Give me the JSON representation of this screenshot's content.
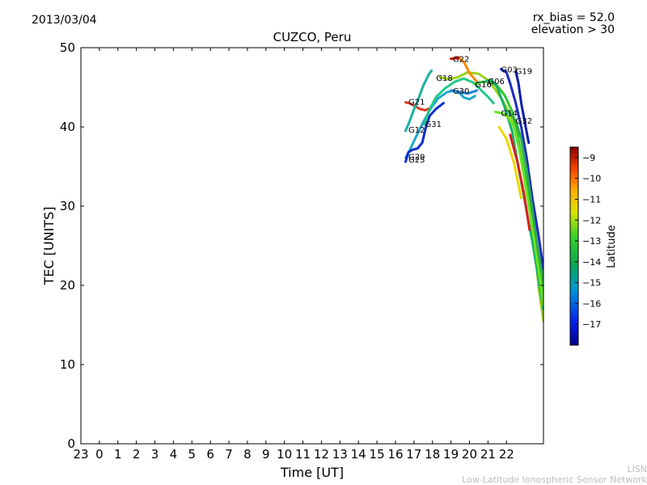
{
  "header": {
    "date": "2013/03/04",
    "rx_bias": "rx_bias = 52.0",
    "elevation": "elevation > 30"
  },
  "chart_data": {
    "type": "line",
    "title": "CUZCO, Peru",
    "xlabel": "Time [UT]",
    "ylabel": "TEC [UNITS]",
    "xlim": [
      -1,
      24
    ],
    "ylim": [
      0,
      50
    ],
    "xticks": [
      -1,
      0,
      1,
      2,
      3,
      4,
      5,
      6,
      7,
      8,
      9,
      10,
      11,
      12,
      13,
      14,
      15,
      16,
      17,
      18,
      19,
      20,
      21,
      22
    ],
    "xtick_labels": [
      "23",
      "0",
      "1",
      "2",
      "3",
      "4",
      "5",
      "6",
      "7",
      "8",
      "9",
      "10",
      "11",
      "12",
      "13",
      "14",
      "15",
      "16",
      "17",
      "18",
      "19",
      "20",
      "21",
      "22"
    ],
    "yticks": [
      0,
      10,
      20,
      30,
      40,
      50
    ],
    "ytick_labels": [
      "0",
      "10",
      "20",
      "30",
      "40",
      "50"
    ],
    "colorbar": {
      "label": "Latitude",
      "range": [
        -18,
        -8.5
      ],
      "ticks": [
        -9,
        -10,
        -11,
        -12,
        -13,
        -14,
        -15,
        -16,
        -17
      ],
      "tick_labels": [
        "−9",
        "−10",
        "−11",
        "−12",
        "−13",
        "−14",
        "−15",
        "−16",
        "−17"
      ]
    },
    "series": [
      {
        "name": "G21",
        "color": "#d93a1e",
        "label_at": [
          16.7,
          43.2
        ],
        "points": [
          [
            16.55,
            43.1
          ],
          [
            16.75,
            43.0
          ],
          [
            17.0,
            42.7
          ],
          [
            17.3,
            42.3
          ],
          [
            17.6,
            42.1
          ],
          [
            17.9,
            42.4
          ]
        ]
      },
      {
        "name": "G12",
        "color": "#19b3a5",
        "label_at": [
          16.7,
          39.7
        ],
        "points": [
          [
            16.55,
            39.5
          ],
          [
            16.75,
            40.6
          ],
          [
            17.0,
            42.2
          ],
          [
            17.25,
            43.6
          ],
          [
            17.5,
            45.2
          ],
          [
            17.8,
            46.6
          ],
          [
            17.95,
            47.1
          ]
        ]
      },
      {
        "name": "G29",
        "color": "#1fa8cc",
        "label_at": [
          16.7,
          36.3
        ],
        "points": [
          [
            16.55,
            36.1
          ],
          [
            16.8,
            37.2
          ],
          [
            17.1,
            38.7
          ],
          [
            17.5,
            40.6
          ],
          [
            17.9,
            42.3
          ],
          [
            18.3,
            43.6
          ],
          [
            18.8,
            44.4
          ],
          [
            19.2,
            44.6
          ],
          [
            19.5,
            44.2
          ],
          [
            19.7,
            43.7
          ],
          [
            20.0,
            43.5
          ],
          [
            20.3,
            43.9
          ]
        ]
      },
      {
        "name": "G25",
        "color": "#0c2fd0",
        "label_at": [
          16.7,
          35.9
        ],
        "points": [
          [
            16.55,
            35.6
          ],
          [
            16.7,
            36.8
          ],
          [
            16.9,
            37.1
          ],
          [
            17.2,
            37.3
          ],
          [
            17.45,
            38.0
          ],
          [
            17.65,
            40.0
          ],
          [
            17.85,
            41.4
          ],
          [
            18.2,
            42.3
          ],
          [
            18.6,
            43.0
          ]
        ]
      },
      {
        "name": "G31",
        "color": "#22c98a",
        "label_at": [
          17.6,
          40.4
        ],
        "points": [
          [
            17.55,
            40.3
          ],
          [
            17.8,
            42.0
          ],
          [
            18.2,
            43.8
          ],
          [
            18.7,
            44.9
          ],
          [
            19.2,
            45.7
          ],
          [
            19.7,
            46.1
          ],
          [
            20.2,
            45.6
          ],
          [
            20.6,
            44.7
          ],
          [
            21.0,
            43.8
          ],
          [
            21.3,
            43.0
          ]
        ]
      },
      {
        "name": "G18",
        "color": "#9ad21a",
        "label_at": [
          18.2,
          46.2
        ],
        "points": [
          [
            18.4,
            46.3
          ],
          [
            18.9,
            46.0
          ],
          [
            19.4,
            46.3
          ],
          [
            19.9,
            46.9
          ],
          [
            20.5,
            46.7
          ],
          [
            21.0,
            45.9
          ],
          [
            21.4,
            44.7
          ],
          [
            21.8,
            43.3
          ],
          [
            22.2,
            41.6
          ],
          [
            22.6,
            38.4
          ],
          [
            23.0,
            34.0
          ],
          [
            23.4,
            27.5
          ],
          [
            23.75,
            19.5
          ],
          [
            24.0,
            15.5
          ]
        ]
      },
      {
        "name": "G22",
        "color": "#ff8c00",
        "label_at": [
          19.1,
          48.6
        ],
        "points": [
          [
            19.1,
            48.6
          ],
          [
            19.4,
            48.8
          ],
          [
            19.7,
            48.2
          ],
          [
            20.0,
            46.8
          ],
          [
            20.4,
            45.7
          ]
        ]
      },
      {
        "name": "G22-red",
        "color": "#c91010",
        "label_at": null,
        "points": [
          [
            19.0,
            48.6
          ],
          [
            19.4,
            48.7
          ]
        ]
      },
      {
        "name": "G30",
        "color": "#1f86d8",
        "label_at": [
          19.1,
          44.6
        ],
        "points": [
          [
            19.0,
            44.6
          ],
          [
            19.5,
            44.4
          ],
          [
            19.9,
            44.2
          ],
          [
            20.4,
            44.6
          ]
        ]
      },
      {
        "name": "G16",
        "color": "#32c832",
        "label_at": [
          20.3,
          45.4
        ],
        "points": [
          [
            20.3,
            45.4
          ],
          [
            20.7,
            45.7
          ],
          [
            21.1,
            45.7
          ],
          [
            21.5,
            45.2
          ],
          [
            21.9,
            44.0
          ],
          [
            22.3,
            42.0
          ],
          [
            22.6,
            39.0
          ],
          [
            23.0,
            34.0
          ],
          [
            23.4,
            28.5
          ],
          [
            23.75,
            22.5
          ],
          [
            24.0,
            19.0
          ]
        ]
      },
      {
        "name": "G06",
        "color": "#16b06a",
        "label_at": [
          21.0,
          45.8
        ],
        "points": [
          [
            20.9,
            45.8
          ],
          [
            21.2,
            45.9
          ],
          [
            21.5,
            45.0
          ],
          [
            21.9,
            42.5
          ],
          [
            22.3,
            39.5
          ],
          [
            22.6,
            35.5
          ],
          [
            23.0,
            30.5
          ],
          [
            23.4,
            25.5
          ],
          [
            23.75,
            20.5
          ],
          [
            24.0,
            17.0
          ]
        ]
      },
      {
        "name": "G03",
        "color": "#1d2cc3",
        "label_at": [
          21.7,
          47.3
        ],
        "points": [
          [
            21.7,
            47.3
          ],
          [
            22.0,
            46.9
          ],
          [
            22.2,
            45.5
          ],
          [
            22.5,
            43.0
          ],
          [
            22.8,
            40.0
          ],
          [
            23.1,
            36.0
          ],
          [
            23.4,
            31.0
          ],
          [
            23.75,
            26.0
          ],
          [
            24.0,
            22.0
          ]
        ]
      },
      {
        "name": "G19",
        "color": "#0a1ea8",
        "label_at": [
          22.5,
          47.1
        ],
        "points": [
          [
            22.5,
            47.0
          ],
          [
            22.65,
            45.5
          ],
          [
            22.8,
            43.0
          ],
          [
            23.0,
            40.5
          ],
          [
            23.2,
            38.0
          ]
        ]
      },
      {
        "name": "G14",
        "color": "#6ee31c",
        "label_at": [
          21.7,
          41.8
        ],
        "points": [
          [
            21.4,
            41.9
          ],
          [
            21.8,
            41.7
          ],
          [
            22.1,
            41.2
          ],
          [
            22.4,
            40.0
          ],
          [
            22.7,
            37.0
          ],
          [
            23.0,
            33.0
          ],
          [
            23.35,
            28.0
          ],
          [
            23.7,
            22.5
          ],
          [
            24.0,
            17.5
          ]
        ]
      },
      {
        "name": "G14-red",
        "color": "#d62020",
        "label_at": null,
        "points": [
          [
            22.2,
            39.0
          ],
          [
            22.6,
            35.5
          ],
          [
            22.95,
            31.5
          ],
          [
            23.25,
            27.0
          ]
        ]
      },
      {
        "name": "G14-yellow",
        "color": "#e9d800",
        "label_at": null,
        "points": [
          [
            21.6,
            40.0
          ],
          [
            22.0,
            38.5
          ],
          [
            22.4,
            35.5
          ],
          [
            22.8,
            31.0
          ]
        ]
      },
      {
        "name": "G32",
        "color": "#2ea850",
        "label_at": [
          22.5,
          40.8
        ],
        "points": [
          [
            22.1,
            42.0
          ],
          [
            22.5,
            40.8
          ],
          [
            22.8,
            38.5
          ],
          [
            23.1,
            34.5
          ],
          [
            23.4,
            29.5
          ],
          [
            23.7,
            24.5
          ],
          [
            24.0,
            20.5
          ]
        ]
      }
    ]
  },
  "watermark": {
    "line1": "LISN",
    "line2": "Low-Latitude Ionospheric Sensor Network"
  }
}
